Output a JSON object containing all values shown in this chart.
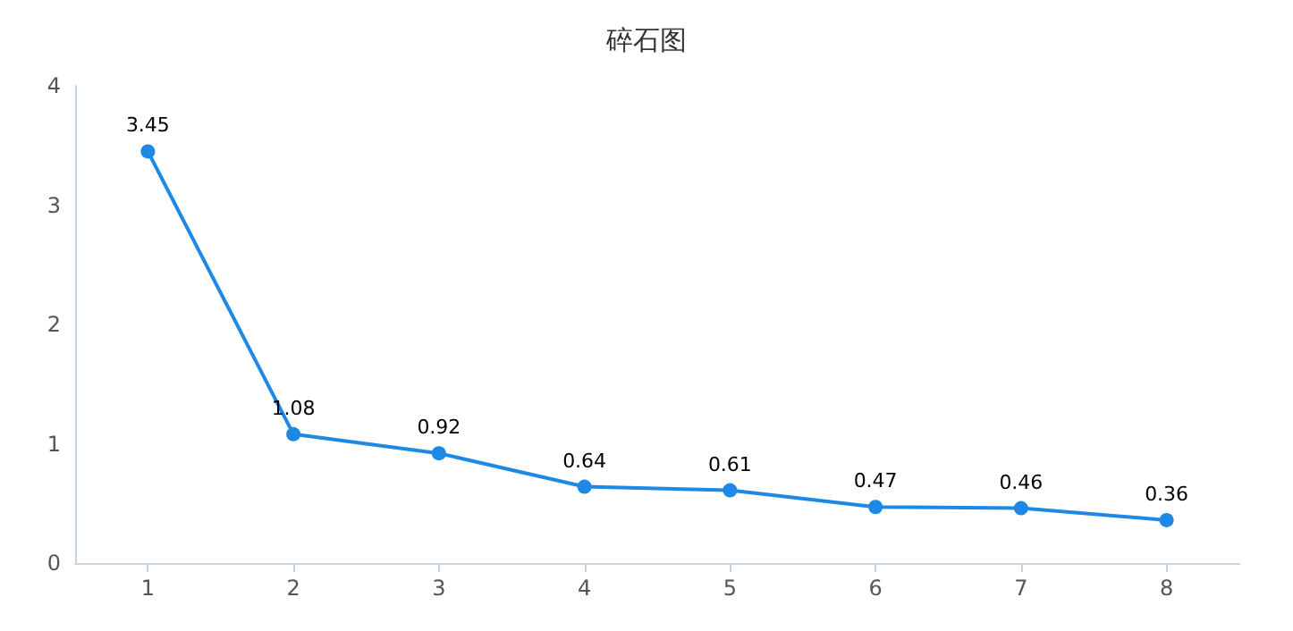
{
  "chart_data": {
    "type": "line",
    "title": "碎石图",
    "categories": [
      "1",
      "2",
      "3",
      "4",
      "5",
      "6",
      "7",
      "8"
    ],
    "series": [
      {
        "color": "#1e88e5",
        "values": [
          3.45,
          1.08,
          0.92,
          0.64,
          0.61,
          0.47,
          0.46,
          0.36
        ]
      }
    ],
    "ylim": [
      0,
      4
    ],
    "yticks": [
      0,
      1,
      2,
      3,
      4
    ],
    "data_labels": true,
    "marker": "circle"
  }
}
